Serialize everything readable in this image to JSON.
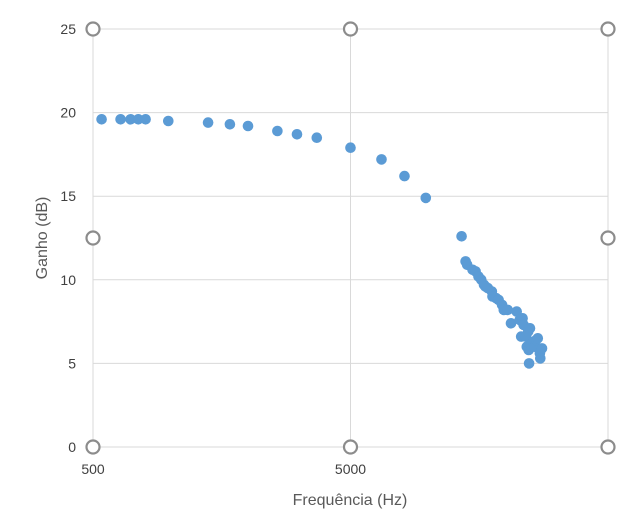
{
  "chart_data": {
    "type": "scatter",
    "xlabel": "Frequência (Hz)",
    "ylabel": "Ganho (dB)",
    "x_scale": "log",
    "xlim": [
      500,
      50000
    ],
    "ylim": [
      0,
      25
    ],
    "x_tick_labels": [
      "500",
      "5000"
    ],
    "y_ticks": [
      0,
      5,
      10,
      15,
      20,
      25
    ],
    "grid": true,
    "marker_color": "#5b9bd5",
    "series": [
      {
        "points": [
          [
            540,
            19.6
          ],
          [
            640,
            19.6
          ],
          [
            700,
            19.6
          ],
          [
            750,
            19.6
          ],
          [
            800,
            19.6
          ],
          [
            980,
            19.5
          ],
          [
            1400,
            19.4
          ],
          [
            1700,
            19.3
          ],
          [
            2000,
            19.2
          ],
          [
            2600,
            18.9
          ],
          [
            3100,
            18.7
          ],
          [
            3700,
            18.5
          ],
          [
            5000,
            17.9
          ],
          [
            6600,
            17.2
          ],
          [
            8100,
            16.2
          ],
          [
            9800,
            14.9
          ],
          [
            13500,
            12.6
          ],
          [
            14000,
            11.1
          ],
          [
            14200,
            10.9
          ],
          [
            14900,
            10.6
          ],
          [
            15300,
            10.5
          ],
          [
            15700,
            10.2
          ],
          [
            16100,
            10.0
          ],
          [
            16500,
            9.7
          ],
          [
            16700,
            9.6
          ],
          [
            17100,
            9.5
          ],
          [
            17700,
            9.3
          ],
          [
            17800,
            9.0
          ],
          [
            18400,
            8.9
          ],
          [
            18800,
            8.8
          ],
          [
            19400,
            8.5
          ],
          [
            19700,
            8.2
          ],
          [
            20400,
            8.2
          ],
          [
            21000,
            7.4
          ],
          [
            22100,
            8.1
          ],
          [
            22700,
            7.6
          ],
          [
            23000,
            6.6
          ],
          [
            23300,
            7.7
          ],
          [
            23500,
            7.3
          ],
          [
            24000,
            6.6
          ],
          [
            24200,
            6.0
          ],
          [
            24500,
            6.9
          ],
          [
            24600,
            5.8
          ],
          [
            24700,
            5.0
          ],
          [
            24900,
            7.1
          ],
          [
            25100,
            6.1
          ],
          [
            25300,
            6.2
          ],
          [
            25600,
            6.3
          ],
          [
            25900,
            6.0
          ],
          [
            26300,
            6.4
          ],
          [
            26700,
            6.5
          ],
          [
            27200,
            5.6
          ],
          [
            27300,
            5.3
          ],
          [
            27700,
            5.9
          ]
        ]
      }
    ]
  }
}
